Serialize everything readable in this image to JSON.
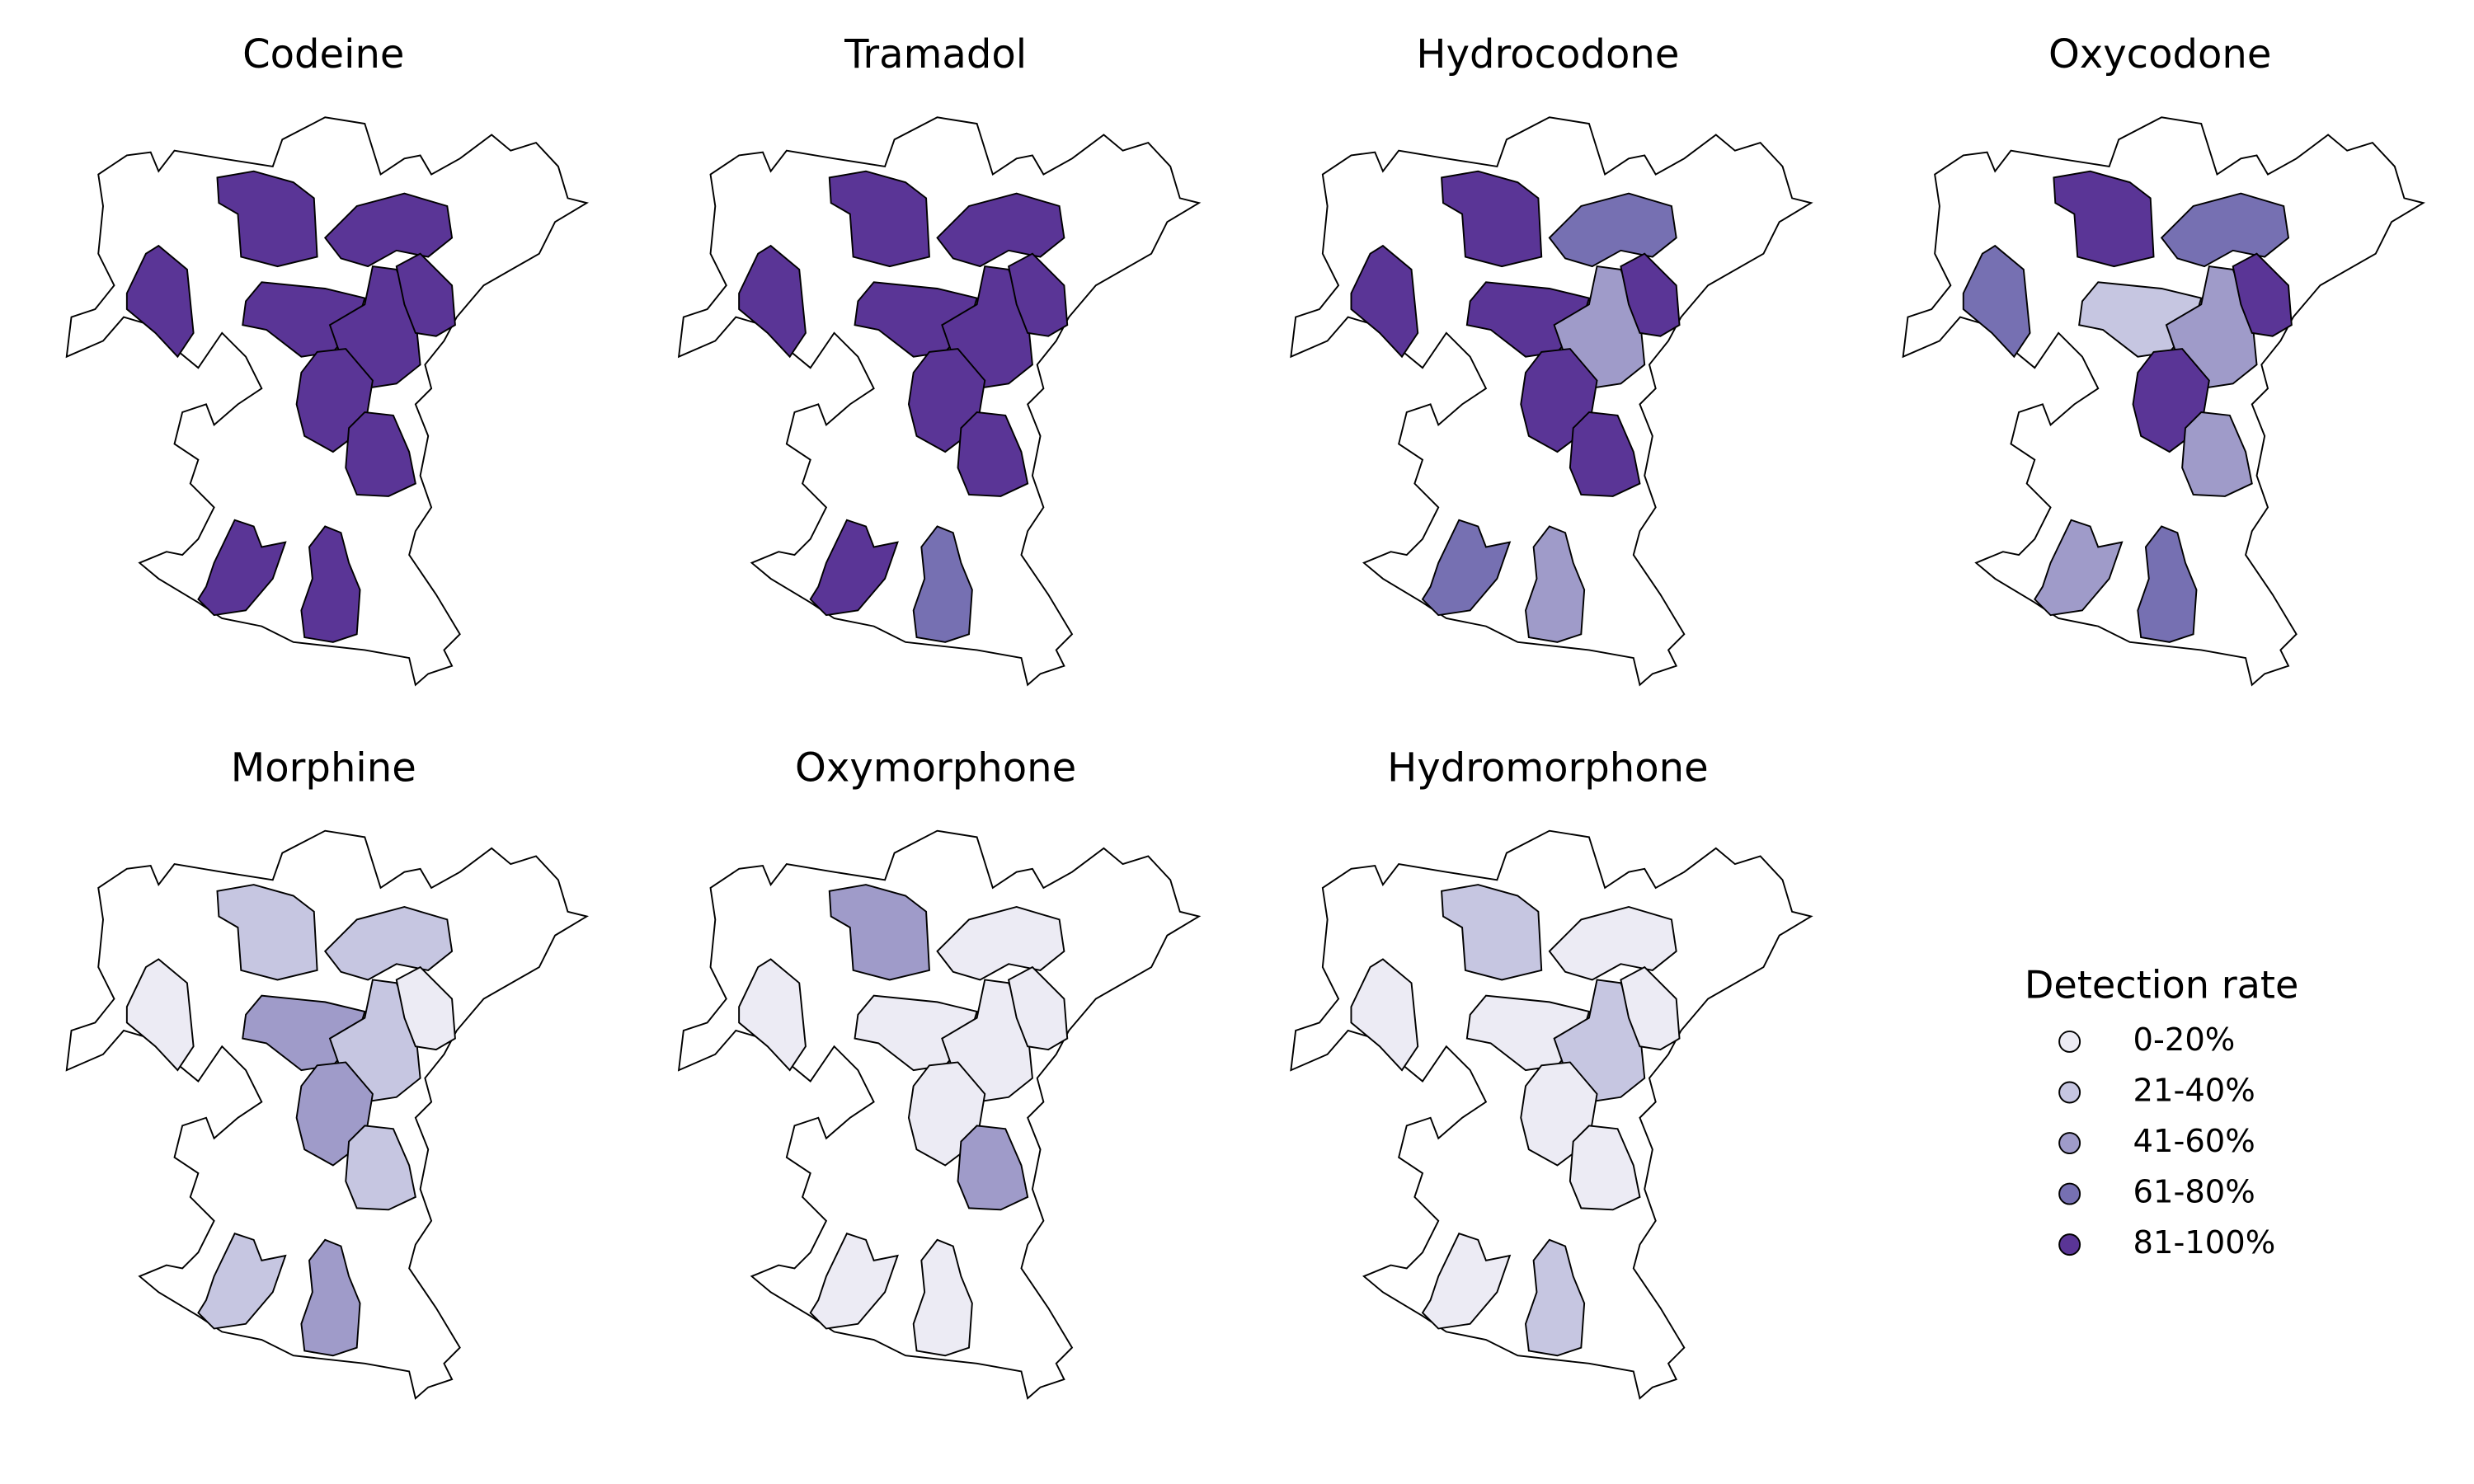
{
  "maps": [
    {
      "title": "Codeine",
      "regions": [
        4,
        4,
        4,
        4,
        4,
        4,
        4,
        4,
        4,
        4
      ]
    },
    {
      "title": "Tramadol",
      "regions": [
        4,
        4,
        4,
        4,
        4,
        4,
        4,
        4,
        4,
        3
      ]
    },
    {
      "title": "Hydrocodone",
      "regions": [
        4,
        4,
        3,
        4,
        2,
        4,
        4,
        4,
        3,
        2
      ]
    },
    {
      "title": "Oxycodone",
      "regions": [
        3,
        4,
        3,
        1,
        2,
        4,
        4,
        2,
        2,
        3
      ]
    },
    {
      "title": "Morphine",
      "regions": [
        0,
        1,
        1,
        2,
        1,
        0,
        2,
        1,
        1,
        2
      ]
    },
    {
      "title": "Oxymorphone",
      "regions": [
        0,
        2,
        0,
        0,
        0,
        0,
        0,
        2,
        0,
        0
      ]
    },
    {
      "title": "Hydromorphone",
      "regions": [
        0,
        1,
        0,
        0,
        1,
        0,
        0,
        0,
        0,
        1
      ]
    }
  ],
  "legend": {
    "title": "Detection rate",
    "items": [
      {
        "label": "0-20%",
        "color": "#ecebf4"
      },
      {
        "label": "21-40%",
        "color": "#c6c6e1"
      },
      {
        "label": "41-60%",
        "color": "#9f9bc9"
      },
      {
        "label": "61-80%",
        "color": "#7670b2"
      },
      {
        "label": "81-100%",
        "color": "#5a3596"
      }
    ]
  }
}
